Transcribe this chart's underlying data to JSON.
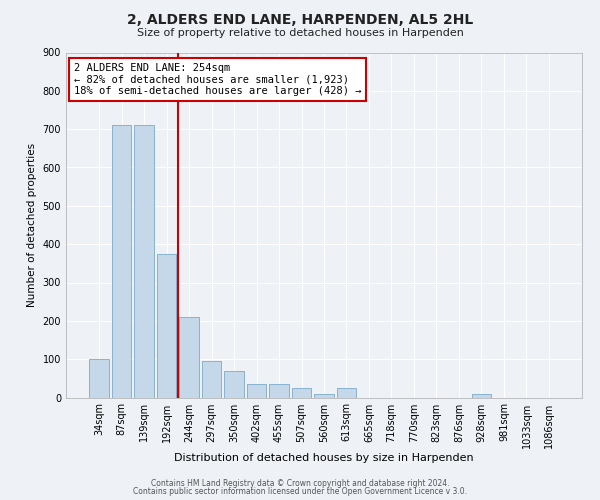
{
  "title": "2, ALDERS END LANE, HARPENDEN, AL5 2HL",
  "subtitle": "Size of property relative to detached houses in Harpenden",
  "xlabel": "Distribution of detached houses by size in Harpenden",
  "ylabel": "Number of detached properties",
  "bar_color": "#c5d8ea",
  "bar_edge_color": "#7aaac8",
  "background_color": "#eef2f7",
  "grid_color": "#ffffff",
  "categories": [
    "34sqm",
    "87sqm",
    "139sqm",
    "192sqm",
    "244sqm",
    "297sqm",
    "350sqm",
    "402sqm",
    "455sqm",
    "507sqm",
    "560sqm",
    "613sqm",
    "665sqm",
    "718sqm",
    "770sqm",
    "823sqm",
    "876sqm",
    "928sqm",
    "981sqm",
    "1033sqm",
    "1086sqm"
  ],
  "values": [
    100,
    710,
    710,
    375,
    210,
    95,
    70,
    35,
    35,
    25,
    10,
    25,
    0,
    0,
    0,
    0,
    0,
    10,
    0,
    0,
    0
  ],
  "ylim": [
    0,
    900
  ],
  "yticks": [
    0,
    100,
    200,
    300,
    400,
    500,
    600,
    700,
    800,
    900
  ],
  "property_line_color": "#cc0000",
  "property_bar_index": 4,
  "annotation_title": "2 ALDERS END LANE: 254sqm",
  "annotation_line1": "← 82% of detached houses are smaller (1,923)",
  "annotation_line2": "18% of semi-detached houses are larger (428) →",
  "annotation_box_color": "#cc0000",
  "footer_line1": "Contains HM Land Registry data © Crown copyright and database right 2024.",
  "footer_line2": "Contains public sector information licensed under the Open Government Licence v 3.0."
}
